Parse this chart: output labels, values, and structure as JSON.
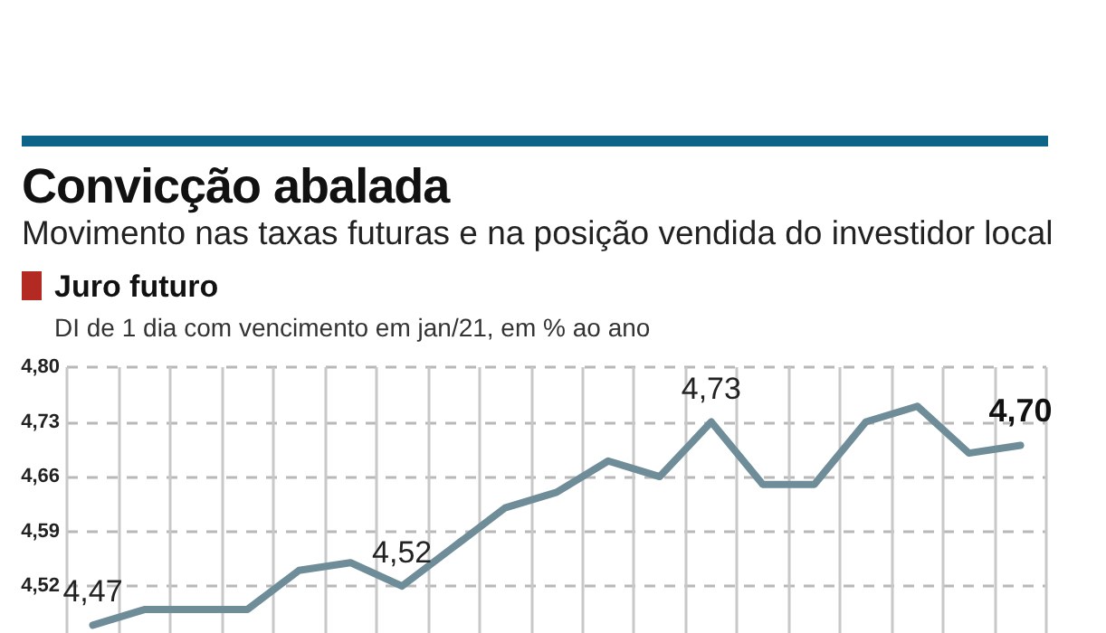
{
  "chart_data": {
    "type": "line",
    "title": "Convicção abalada",
    "subtitle": "Movimento nas taxas futuras e na posição vendida do investidor local",
    "annotations": [
      "Juro futuro",
      "DI de 1 dia com vencimento em jan/21, em % ao ano"
    ],
    "categories": [
      null,
      null,
      null,
      null,
      null,
      null,
      null,
      null,
      null,
      null,
      null,
      null,
      null,
      null,
      null,
      null,
      null,
      null,
      null
    ],
    "series": [
      {
        "color": "#6e8d99",
        "values": [
          4.47,
          4.49,
          4.49,
          4.49,
          4.54,
          4.55,
          4.52,
          4.57,
          4.62,
          4.64,
          4.68,
          4.66,
          4.73,
          4.65,
          4.65,
          4.73,
          4.75,
          4.69,
          4.7
        ],
        "value_labels": [
          "4,47",
          null,
          null,
          null,
          null,
          null,
          "4,52",
          null,
          null,
          null,
          null,
          null,
          "4,73",
          null,
          null,
          null,
          null,
          null,
          "4,70"
        ]
      }
    ],
    "ylim": [
      4.46,
      4.8
    ],
    "yticks": [
      {
        "value": 4.52,
        "label": "4,52"
      },
      {
        "value": 4.59,
        "label": "4,59"
      },
      {
        "value": 4.66,
        "label": "4,66"
      },
      {
        "value": 4.73,
        "label": "4,73"
      },
      {
        "value": 4.8,
        "label": "4,80"
      }
    ],
    "tick_labels": "y",
    "grid": true,
    "marker": "none",
    "line_style": "solid"
  }
}
